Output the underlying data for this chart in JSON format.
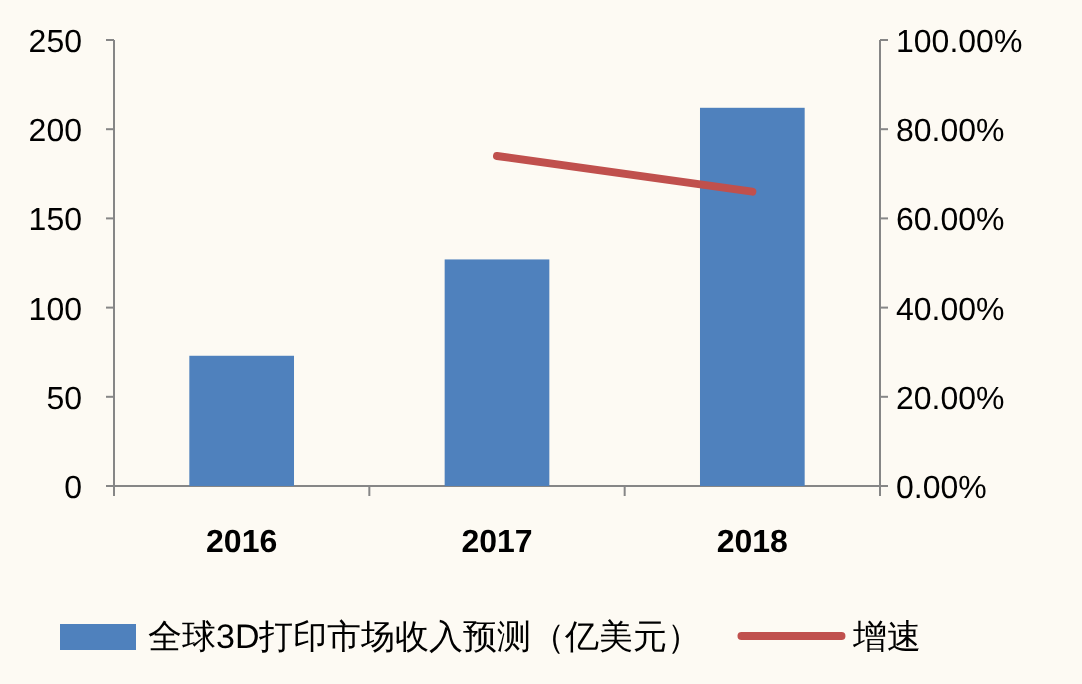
{
  "chart_data": {
    "type": "bar",
    "categories": [
      "2016",
      "2017",
      "2018"
    ],
    "series": [
      {
        "name": "全球3D打印市场收入预测（亿美元）",
        "color": "#4f81bd",
        "values": [
          73,
          127,
          212
        ]
      },
      {
        "name": "增速",
        "type": "line",
        "axis": "y2",
        "color": "#c0504d",
        "values": [
          null,
          74,
          66
        ]
      }
    ],
    "ylim": [
      0,
      250
    ],
    "yticks": [
      0,
      50,
      100,
      150,
      200,
      250
    ],
    "y2lim": [
      0,
      100
    ],
    "y2ticks": [
      {
        "value": 0,
        "label": "0.00%"
      },
      {
        "value": 20,
        "label": "20.00%"
      },
      {
        "value": 40,
        "label": "40.00%"
      },
      {
        "value": 60,
        "label": "60.00%"
      },
      {
        "value": 80,
        "label": "80.00%"
      },
      {
        "value": 100,
        "label": "100.00%"
      }
    ],
    "legend": "bottom",
    "grid": false
  }
}
